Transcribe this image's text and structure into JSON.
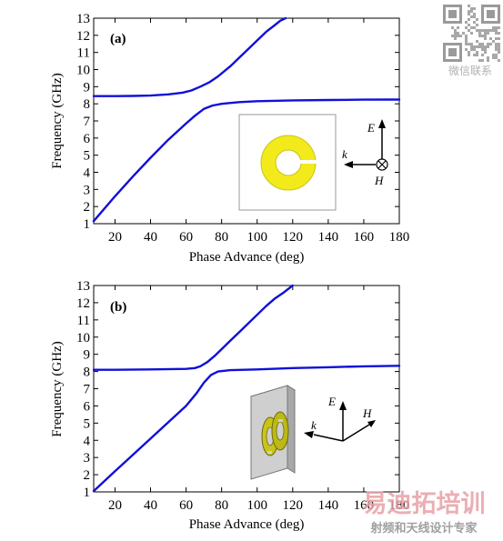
{
  "watermarks": {
    "qr_caption": "微信联系",
    "brand_main": "易迪拓培训",
    "brand_sub": "射频和天线设计专家"
  },
  "colors": {
    "curve": "#1010d8",
    "ring_fill": "#f2ea1a",
    "ring_fill_3d": "#c9c418",
    "slab": "#c8c8c8",
    "brand_red": "#e8a0a6"
  },
  "chart_data": [
    {
      "type": "line",
      "panel_label": "(a)",
      "xlabel": "Phase Advance (deg)",
      "ylabel": "Frequency (GHz)",
      "xlim": [
        8,
        180
      ],
      "ylim": [
        1,
        13
      ],
      "xticks": [
        20,
        40,
        60,
        80,
        100,
        120,
        140,
        160,
        180
      ],
      "yticks": [
        1,
        2,
        3,
        4,
        5,
        6,
        7,
        8,
        9,
        10,
        11,
        12,
        13
      ],
      "grid": false,
      "series": [
        {
          "x": [
            8,
            20,
            30,
            40,
            50,
            58,
            63,
            68,
            73,
            78,
            85,
            90,
            95,
            100,
            105,
            110,
            113,
            116
          ],
          "y": [
            8.45,
            8.45,
            8.46,
            8.48,
            8.55,
            8.65,
            8.78,
            9.0,
            9.25,
            9.6,
            10.2,
            10.7,
            11.2,
            11.7,
            12.2,
            12.6,
            12.85,
            13.0
          ]
        },
        {
          "x": [
            8,
            20,
            30,
            40,
            50,
            60,
            65,
            70,
            75,
            80,
            90,
            100,
            120,
            140,
            160,
            180
          ],
          "y": [
            1.15,
            2.6,
            3.75,
            4.85,
            5.9,
            6.85,
            7.3,
            7.7,
            7.9,
            8.0,
            8.1,
            8.15,
            8.2,
            8.22,
            8.24,
            8.25
          ]
        }
      ],
      "inset": {
        "type": "split-ring-2d",
        "axes_labels": {
          "e": "E",
          "k": "k",
          "h": "H"
        }
      }
    },
    {
      "type": "line",
      "panel_label": "(b)",
      "xlabel": "Phase Advance (deg)",
      "ylabel": "Frequency (GHz)",
      "xlim": [
        8,
        180
      ],
      "ylim": [
        1,
        13
      ],
      "xticks": [
        20,
        40,
        60,
        80,
        100,
        120,
        140,
        160,
        180
      ],
      "yticks": [
        1,
        2,
        3,
        4,
        5,
        6,
        7,
        8,
        9,
        10,
        11,
        12,
        13
      ],
      "grid": false,
      "series": [
        {
          "x": [
            8,
            20,
            40,
            60,
            65,
            68,
            72,
            76,
            80,
            85,
            90,
            95,
            100,
            105,
            110,
            115,
            120
          ],
          "y": [
            8.1,
            8.1,
            8.12,
            8.15,
            8.2,
            8.3,
            8.55,
            8.9,
            9.3,
            9.8,
            10.3,
            10.8,
            11.3,
            11.8,
            12.25,
            12.6,
            13.0
          ]
        },
        {
          "x": [
            8,
            20,
            40,
            60,
            66,
            70,
            74,
            78,
            85,
            100,
            120,
            140,
            160,
            180
          ],
          "y": [
            1.05,
            2.2,
            4.1,
            6.0,
            6.75,
            7.35,
            7.8,
            8.0,
            8.08,
            8.12,
            8.2,
            8.25,
            8.3,
            8.33
          ]
        }
      ],
      "inset": {
        "type": "split-ring-3d",
        "axes_labels": {
          "e": "E",
          "k": "k",
          "h": "H"
        }
      }
    }
  ]
}
